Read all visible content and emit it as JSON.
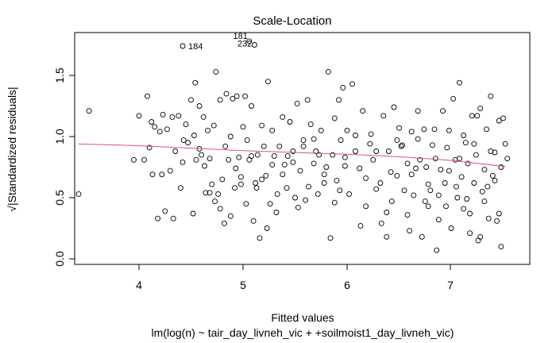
{
  "chart_data": {
    "type": "scatter",
    "title": "Scale-Location",
    "xlabel": "Fitted values",
    "subtitle": "lm(log(n) ~ tair_day_livneh_vic + +soilmoist1_day_livneh_vic)",
    "ylabel": "√|Standardized residuals|",
    "xlim": [
      3.38,
      7.62
    ],
    "ylim": [
      0.0,
      1.83
    ],
    "x_ticks": [
      "4",
      "5",
      "6",
      "7"
    ],
    "y_ticks": [
      "0.0",
      "0.5",
      "1.0",
      "1.5"
    ],
    "point_color": "#000000",
    "smooth_color": "#df536b",
    "labeled_points": [
      {
        "label": "184",
        "x": 4.42,
        "y": 1.74
      },
      {
        "label": "181",
        "x": 5.06,
        "y": 1.78
      },
      {
        "label": "232",
        "x": 5.11,
        "y": 1.75
      }
    ],
    "smooth_line": {
      "x": [
        3.42,
        4.0,
        4.5,
        5.0,
        5.5,
        6.0,
        6.5,
        7.0,
        7.52
      ],
      "y": [
        0.94,
        0.925,
        0.905,
        0.885,
        0.87,
        0.855,
        0.835,
        0.805,
        0.755
      ]
    },
    "points": [
      [
        3.42,
        0.53
      ],
      [
        3.52,
        1.21
      ],
      [
        3.95,
        0.81
      ],
      [
        4.0,
        1.17
      ],
      [
        4.05,
        0.81
      ],
      [
        4.08,
        1.33
      ],
      [
        4.1,
        0.91
      ],
      [
        4.12,
        1.12
      ],
      [
        4.15,
        1.08
      ],
      [
        4.18,
        0.33
      ],
      [
        4.2,
        1.04
      ],
      [
        4.22,
        0.69
      ],
      [
        4.25,
        0.39
      ],
      [
        4.27,
        1.06
      ],
      [
        4.3,
        0.72
      ],
      [
        4.32,
        1.16
      ],
      [
        4.35,
        0.88
      ],
      [
        4.38,
        1.17
      ],
      [
        4.4,
        0.58
      ],
      [
        4.42,
        0.79
      ],
      [
        4.45,
        1.1
      ],
      [
        4.47,
        0.95
      ],
      [
        4.5,
        1.3
      ],
      [
        4.52,
        0.37
      ],
      [
        4.54,
        1.44
      ],
      [
        4.55,
        0.81
      ],
      [
        4.58,
        1.25
      ],
      [
        4.6,
        0.85
      ],
      [
        4.62,
        1.16
      ],
      [
        4.64,
        0.54
      ],
      [
        4.66,
        1.05
      ],
      [
        4.68,
        0.82
      ],
      [
        4.7,
        0.61
      ],
      [
        4.72,
        1.09
      ],
      [
        4.74,
        1.53
      ],
      [
        4.76,
        0.53
      ],
      [
        4.78,
        1.3
      ],
      [
        4.8,
        0.65
      ],
      [
        4.82,
        0.29
      ],
      [
        4.84,
        1.35
      ],
      [
        4.86,
        0.81
      ],
      [
        4.88,
        0.35
      ],
      [
        4.9,
        1.31
      ],
      [
        4.92,
        0.58
      ],
      [
        4.94,
        1.33
      ],
      [
        4.96,
        0.83
      ],
      [
        4.98,
        0.61
      ],
      [
        5.0,
        1.08
      ],
      [
        5.02,
        1.33
      ],
      [
        5.04,
        0.97
      ],
      [
        5.06,
        0.81
      ],
      [
        5.08,
        1.25
      ],
      [
        5.1,
        0.31
      ],
      [
        5.12,
        0.62
      ],
      [
        5.14,
        0.85
      ],
      [
        5.16,
        0.17
      ],
      [
        5.18,
        1.09
      ],
      [
        5.2,
        0.92
      ],
      [
        5.22,
        0.68
      ],
      [
        5.24,
        1.45
      ],
      [
        5.26,
        0.45
      ],
      [
        5.28,
        1.05
      ],
      [
        5.3,
        0.84
      ],
      [
        5.32,
        0.38
      ],
      [
        5.35,
        0.92
      ],
      [
        5.38,
        1.16
      ],
      [
        5.4,
        0.77
      ],
      [
        5.42,
        0.58
      ],
      [
        5.45,
        1.12
      ],
      [
        5.48,
        0.88
      ],
      [
        5.5,
        0.5
      ],
      [
        5.52,
        1.27
      ],
      [
        5.55,
        0.72
      ],
      [
        5.58,
        0.97
      ],
      [
        5.6,
        0.48
      ],
      [
        5.62,
        1.3
      ],
      [
        5.65,
        1.1
      ],
      [
        5.68,
        0.78
      ],
      [
        5.7,
        0.88
      ],
      [
        5.72,
        0.53
      ],
      [
        5.75,
        1.05
      ],
      [
        5.78,
        0.62
      ],
      [
        5.8,
        0.75
      ],
      [
        5.82,
        1.53
      ],
      [
        5.84,
        0.17
      ],
      [
        5.86,
        0.85
      ],
      [
        5.88,
        1.15
      ],
      [
        5.9,
        0.64
      ],
      [
        5.92,
        1.3
      ],
      [
        5.94,
        0.97
      ],
      [
        5.96,
        1.4
      ],
      [
        5.98,
        0.76
      ],
      [
        6.0,
        1.05
      ],
      [
        6.02,
        0.53
      ],
      [
        6.05,
        1.43
      ],
      [
        6.08,
        0.88
      ],
      [
        6.12,
        0.74
      ],
      [
        6.15,
        1.21
      ],
      [
        6.18,
        0.43
      ],
      [
        6.22,
        0.94
      ],
      [
        6.25,
        0.81
      ],
      [
        6.28,
        0.88
      ],
      [
        6.32,
        0.62
      ],
      [
        6.35,
        1.17
      ],
      [
        6.38,
        0.18
      ],
      [
        6.4,
        0.88
      ],
      [
        6.42,
        0.71
      ],
      [
        6.45,
        1.24
      ],
      [
        6.48,
        0.68
      ],
      [
        6.5,
        1.07
      ],
      [
        6.52,
        0.92
      ],
      [
        6.55,
        0.56
      ],
      [
        6.58,
        0.78
      ],
      [
        6.6,
        0.23
      ],
      [
        6.62,
        1.04
      ],
      [
        6.64,
        0.52
      ],
      [
        6.66,
        0.74
      ],
      [
        6.68,
        1.21
      ],
      [
        6.7,
        0.81
      ],
      [
        6.72,
        0.18
      ],
      [
        6.74,
        1.06
      ],
      [
        6.76,
        0.75
      ],
      [
        6.78,
        0.43
      ],
      [
        6.8,
        0.56
      ],
      [
        6.82,
        0.93
      ],
      [
        6.84,
        1.06
      ],
      [
        6.86,
        0.07
      ],
      [
        6.88,
        0.32
      ],
      [
        6.9,
        0.73
      ],
      [
        6.92,
        1.21
      ],
      [
        6.94,
        0.62
      ],
      [
        6.96,
        0.91
      ],
      [
        6.98,
        1.05
      ],
      [
        7.0,
        0.25
      ],
      [
        7.02,
        1.31
      ],
      [
        7.04,
        0.81
      ],
      [
        7.06,
        0.5
      ],
      [
        7.08,
        1.44
      ],
      [
        7.1,
        0.67
      ],
      [
        7.12,
        0.41
      ],
      [
        7.14,
        0.95
      ],
      [
        7.16,
        0.78
      ],
      [
        7.18,
        0.21
      ],
      [
        7.2,
        1.17
      ],
      [
        7.22,
        0.62
      ],
      [
        7.24,
        0.85
      ],
      [
        7.26,
        0.15
      ],
      [
        7.28,
        1.23
      ],
      [
        7.3,
        0.55
      ],
      [
        7.32,
        0.73
      ],
      [
        7.34,
        1.06
      ],
      [
        7.36,
        0.33
      ],
      [
        7.38,
        1.33
      ],
      [
        7.4,
        0.68
      ],
      [
        7.42,
        0.87
      ],
      [
        7.44,
        0.31
      ],
      [
        7.46,
        1.13
      ],
      [
        7.48,
        0.1
      ],
      [
        7.5,
        1.15
      ],
      [
        7.52,
        0.94
      ],
      [
        7.54,
        0.82
      ],
      [
        7.38,
        0.88
      ],
      [
        7.48,
        0.75
      ],
      [
        7.35,
        0.59
      ],
      [
        7.25,
        1.17
      ],
      [
        7.15,
        0.49
      ],
      [
        7.05,
        0.59
      ],
      [
        6.95,
        0.43
      ],
      [
        6.85,
        0.82
      ],
      [
        6.75,
        0.47
      ],
      [
        6.62,
        0.69
      ],
      [
        6.53,
        0.93
      ],
      [
        6.43,
        0.47
      ],
      [
        6.33,
        0.29
      ],
      [
        6.23,
        1.02
      ],
      [
        6.13,
        0.27
      ],
      [
        5.93,
        0.56
      ],
      [
        5.73,
        0.85
      ],
      [
        5.63,
        0.59
      ],
      [
        5.53,
        0.42
      ],
      [
        5.43,
        0.84
      ],
      [
        5.33,
        0.53
      ],
      [
        5.23,
        0.25
      ],
      [
        5.13,
        0.58
      ],
      [
        5.03,
        0.45
      ],
      [
        4.93,
        0.74
      ],
      [
        4.83,
        0.92
      ],
      [
        4.73,
        0.47
      ],
      [
        4.63,
        0.76
      ],
      [
        4.53,
        1.01
      ],
      [
        4.43,
        0.97
      ],
      [
        4.33,
        0.33
      ],
      [
        4.23,
        1.18
      ],
      [
        4.13,
        0.69
      ],
      [
        7.12,
        1.01
      ],
      [
        7.22,
        0.94
      ],
      [
        7.32,
        0.47
      ],
      [
        7.42,
        0.64
      ],
      [
        7.46,
        0.37
      ],
      [
        7.28,
        0.18
      ],
      [
        7.18,
        0.37
      ],
      [
        7.08,
        0.82
      ],
      [
        6.98,
        0.72
      ],
      [
        6.88,
        0.52
      ],
      [
        6.78,
        0.61
      ],
      [
        6.68,
        0.98
      ],
      [
        6.58,
        0.36
      ],
      [
        6.48,
        0.97
      ],
      [
        6.38,
        0.38
      ],
      [
        6.28,
        0.57
      ],
      [
        6.18,
        0.66
      ],
      [
        6.08,
        1.01
      ],
      [
        5.98,
        0.83
      ],
      [
        5.88,
        0.46
      ],
      [
        5.78,
        0.69
      ],
      [
        5.68,
        0.98
      ],
      [
        5.58,
        0.92
      ],
      [
        5.48,
        0.79
      ],
      [
        5.38,
        0.69
      ],
      [
        5.28,
        0.77
      ],
      [
        5.18,
        0.65
      ],
      [
        5.08,
        0.84
      ],
      [
        4.98,
        0.67
      ],
      [
        4.88,
        1.0
      ],
      [
        4.78,
        0.41
      ],
      [
        4.68,
        0.54
      ],
      [
        4.58,
        0.9
      ]
    ]
  }
}
